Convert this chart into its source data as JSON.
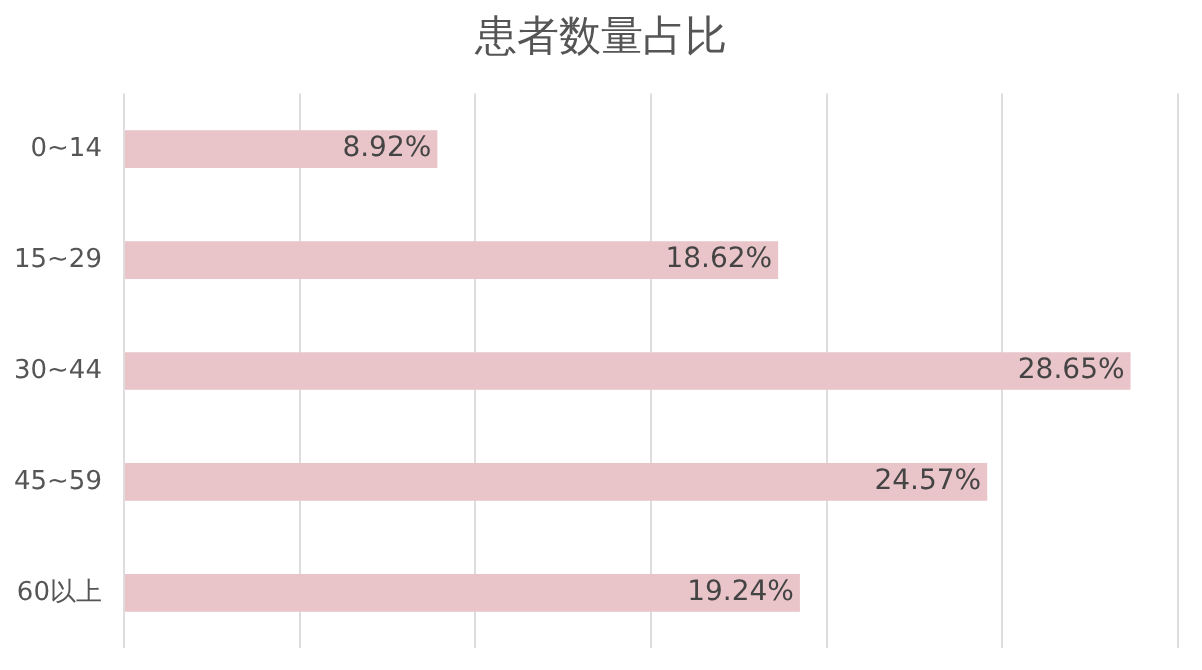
{
  "chart_data": {
    "type": "bar",
    "orientation": "horizontal",
    "title": "患者数量占比",
    "categories": [
      "0~14",
      "15~29",
      "30~44",
      "45~59",
      "60以上"
    ],
    "values": [
      8.92,
      18.62,
      28.65,
      24.57,
      19.24
    ],
    "value_labels": [
      "8.92%",
      "18.62%",
      "28.65%",
      "24.57%",
      "19.24%"
    ],
    "color": "#e9c5c9",
    "xlim": [
      0,
      30
    ],
    "xticks": [
      {
        "value": 0,
        "label": null
      },
      {
        "value": 5,
        "label": null
      },
      {
        "value": 10,
        "label": null
      },
      {
        "value": 15,
        "label": null
      },
      {
        "value": 20,
        "label": null
      },
      {
        "value": 25,
        "label": null
      },
      {
        "value": 30,
        "label": null
      }
    ],
    "grid": "x",
    "tick_labels": "y"
  }
}
